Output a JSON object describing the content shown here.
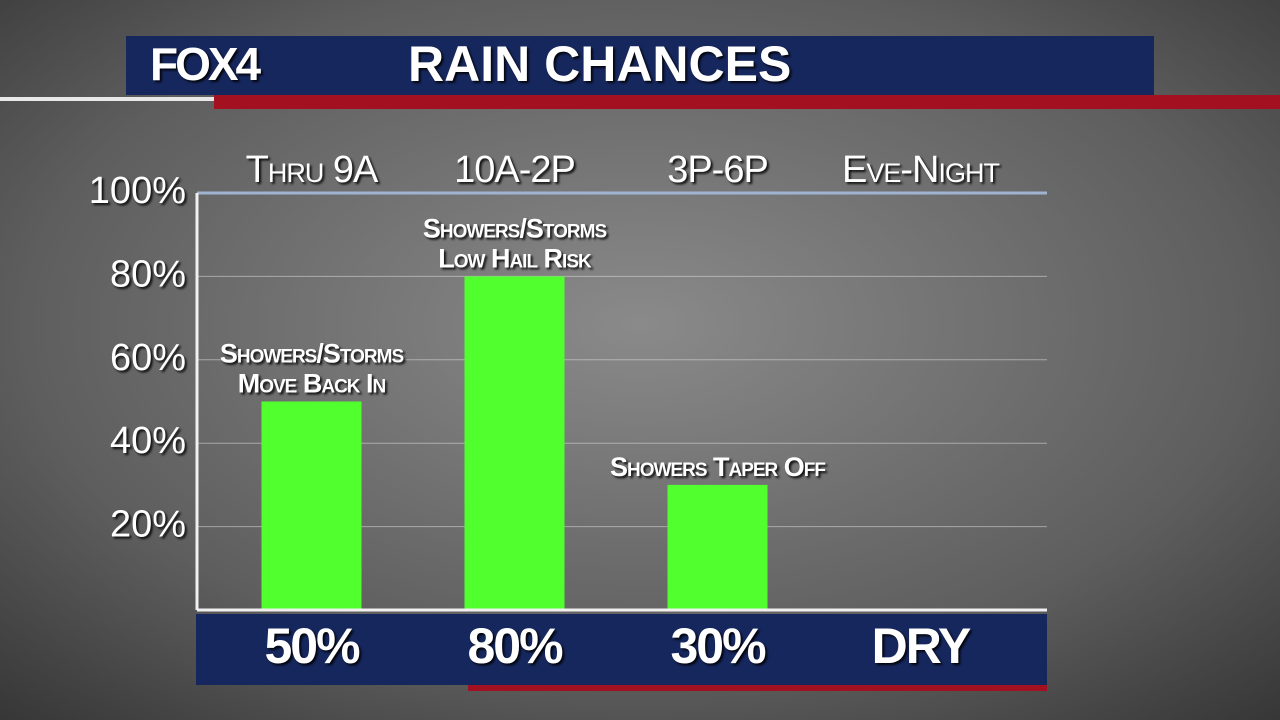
{
  "header": {
    "logo": "FOX4"
  },
  "chart_data": {
    "type": "bar",
    "title": "RAIN CHANCES",
    "categories": [
      "Thru 9A",
      "10A-2P",
      "3P-6P",
      "Eve-Night"
    ],
    "values": [
      50,
      80,
      30,
      null
    ],
    "value_labels": [
      "50%",
      "80%",
      "30%",
      "DRY"
    ],
    "bar_notes": [
      [
        "Showers/Storms",
        "Move Back In"
      ],
      [
        "Showers/Storms",
        "Low Hail Risk"
      ],
      [
        "Showers Taper Off"
      ],
      null
    ],
    "color": "#52ff2e",
    "ylim": [
      0,
      100
    ],
    "yticks": [
      {
        "value": 20,
        "label": "20%"
      },
      {
        "value": 40,
        "label": "40%"
      },
      {
        "value": 60,
        "label": "60%"
      },
      {
        "value": 80,
        "label": "80%"
      },
      {
        "value": 100,
        "label": "100%"
      }
    ],
    "grid": true
  }
}
